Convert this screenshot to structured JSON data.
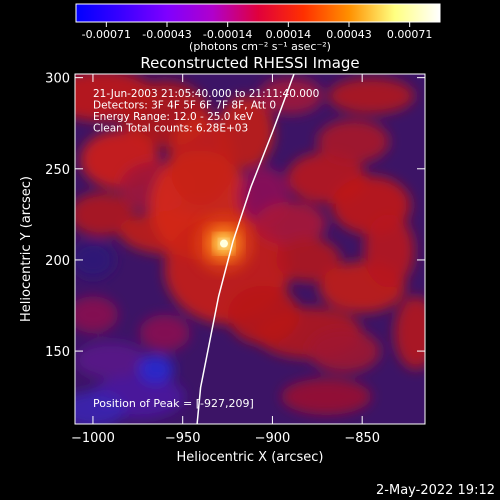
{
  "chart_data": {
    "type": "heatmap",
    "title": "Reconstructed RHESSI Image",
    "xlabel": "Heliocentric X (arcsec)",
    "ylabel": "Heliocentric Y (arcsec)",
    "xlim": [
      -1010,
      -815
    ],
    "ylim": [
      110,
      302
    ],
    "xticks": [
      -1000,
      -950,
      -900,
      -850
    ],
    "yticks": [
      150,
      200,
      250,
      300
    ],
    "colorbar": {
      "ticks": [
        "-0.00071",
        "-0.00043",
        "-0.00014",
        "0.00014",
        "0.00043",
        "0.00071"
      ],
      "unit_label": "(photons cm⁻² s⁻¹ asec⁻²)",
      "colors": [
        "#0000ff",
        "#3a00ff",
        "#7f00ff",
        "#b000cc",
        "#e0003c",
        "#ff3000",
        "#ff9000",
        "#ffff80",
        "#ffffff"
      ]
    },
    "annotations": [
      "21-Jun-2003 21:05:40.000 to 21:11:40.000",
      "Detectors: 3F 4F 5F 6F 7F 8F, Att 0",
      "Energy Range: 12.0 - 25.0 keV",
      "Clean     Total counts: 6.28E+03"
    ],
    "peak_label": "Position of Peak = [-927,209]",
    "peak": {
      "x": -927,
      "y": 209
    },
    "limb_curve": [
      [
        -888,
        302
      ],
      [
        -900,
        270
      ],
      [
        -912,
        240
      ],
      [
        -922,
        210
      ],
      [
        -930,
        180
      ],
      [
        -936,
        150
      ],
      [
        -940,
        130
      ],
      [
        -942,
        110
      ]
    ]
  },
  "footer": {
    "date": "2-May-2022 19:12"
  }
}
